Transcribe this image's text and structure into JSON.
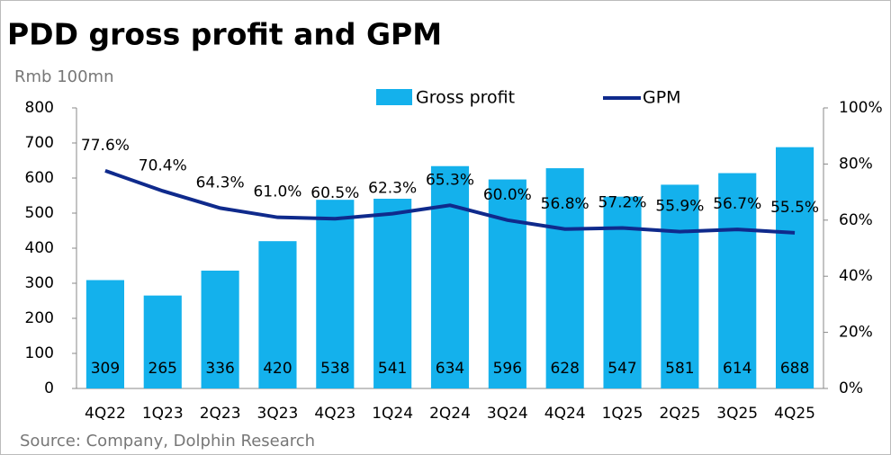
{
  "chart_data": {
    "type": "bar-line",
    "title": "PDD gross profit and GPM",
    "y_label": "Rmb 100mn",
    "source": "Source: Company, Dolphin Research",
    "categories": [
      "4Q22",
      "1Q23",
      "2Q23",
      "3Q23",
      "4Q23",
      "1Q24",
      "2Q24",
      "3Q24",
      "4Q24",
      "1Q25",
      "2Q25",
      "3Q25",
      "4Q25"
    ],
    "series": [
      {
        "name": "Gross profit",
        "color": "#14b1ec",
        "type": "bar",
        "values": [
          309,
          265,
          336,
          420,
          538,
          541,
          634,
          596,
          628,
          547,
          581,
          614,
          688
        ]
      },
      {
        "name": "GPM",
        "color": "#0f2a8c",
        "type": "line",
        "axis": "y2",
        "values": [
          77.6,
          70.4,
          64.3,
          61.0,
          60.5,
          62.3,
          65.3,
          60.0,
          56.8,
          57.2,
          55.9,
          56.7,
          55.5
        ],
        "value_labels": [
          "77.6%",
          "70.4%",
          "64.3%",
          "61.0%",
          "60.5%",
          "62.3%",
          "65.3%",
          "60.0%",
          "56.8%",
          "57.2%",
          "55.9%",
          "56.7%",
          "55.5%"
        ]
      }
    ],
    "ylim": [
      0,
      800
    ],
    "yticks": [
      0,
      100,
      200,
      300,
      400,
      500,
      600,
      700,
      800
    ],
    "y2lim": [
      0,
      100
    ],
    "y2ticks": [
      {
        "value": 0,
        "label": "0%"
      },
      {
        "value": 20,
        "label": "20%"
      },
      {
        "value": 40,
        "label": "40%"
      },
      {
        "value": 60,
        "label": "60%"
      },
      {
        "value": 80,
        "label": "80%"
      },
      {
        "value": 100,
        "label": "100%"
      }
    ]
  }
}
